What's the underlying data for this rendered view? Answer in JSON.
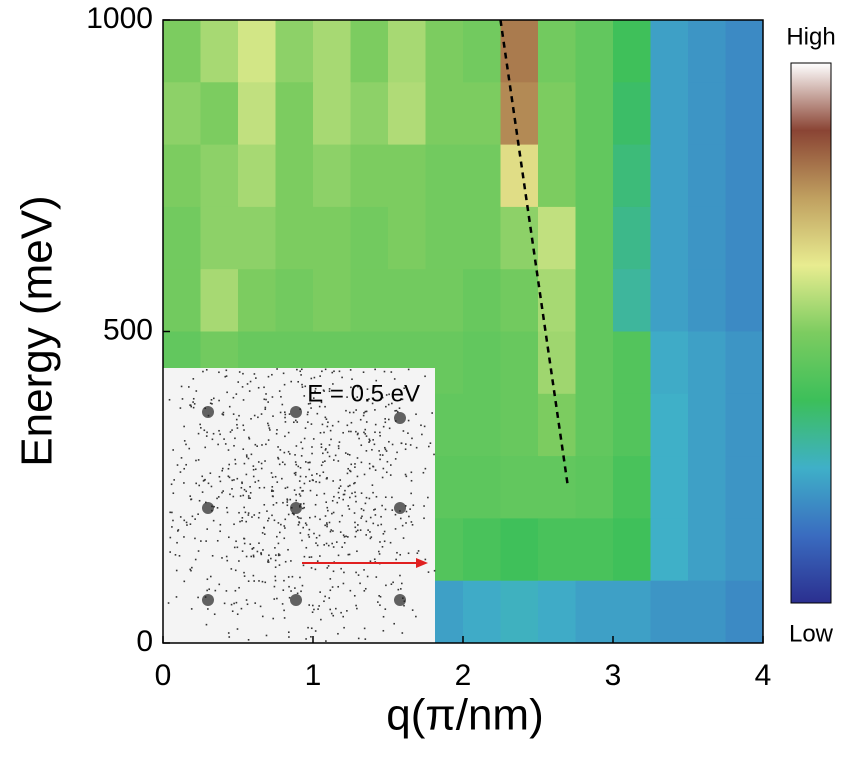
{
  "chart_data": {
    "type": "heatmap",
    "xlabel": "q(π/nm)",
    "ylabel": "Energy (meV)",
    "x": [
      0.125,
      0.375,
      0.625,
      0.875,
      1.125,
      1.375,
      1.625,
      1.875,
      2.125,
      2.375,
      2.625,
      2.875,
      3.125,
      3.375,
      3.625,
      3.875
    ],
    "y": [
      950,
      850,
      750,
      650,
      550,
      450,
      350,
      250,
      150,
      50
    ],
    "z": [
      [
        0.5,
        0.55,
        0.6,
        0.52,
        0.55,
        0.5,
        0.55,
        0.5,
        0.48,
        0.8,
        0.48,
        0.45,
        0.38,
        0.22,
        0.2,
        0.18
      ],
      [
        0.52,
        0.5,
        0.58,
        0.5,
        0.55,
        0.52,
        0.56,
        0.5,
        0.5,
        0.78,
        0.5,
        0.45,
        0.36,
        0.22,
        0.2,
        0.18
      ],
      [
        0.5,
        0.52,
        0.55,
        0.5,
        0.52,
        0.5,
        0.5,
        0.48,
        0.48,
        0.65,
        0.5,
        0.45,
        0.34,
        0.22,
        0.2,
        0.18
      ],
      [
        0.48,
        0.52,
        0.52,
        0.5,
        0.5,
        0.48,
        0.5,
        0.48,
        0.48,
        0.52,
        0.58,
        0.45,
        0.32,
        0.22,
        0.2,
        0.18
      ],
      [
        0.48,
        0.55,
        0.5,
        0.48,
        0.5,
        0.48,
        0.48,
        0.48,
        0.46,
        0.48,
        0.55,
        0.45,
        0.3,
        0.22,
        0.2,
        0.18
      ],
      [
        0.45,
        0.48,
        0.46,
        0.46,
        0.46,
        0.46,
        0.46,
        0.46,
        0.45,
        0.46,
        0.54,
        0.45,
        0.42,
        0.24,
        0.22,
        0.2
      ],
      [
        0.45,
        0.46,
        0.46,
        0.46,
        0.46,
        0.45,
        0.45,
        0.45,
        0.45,
        0.46,
        0.5,
        0.45,
        0.42,
        0.25,
        0.22,
        0.2
      ],
      [
        0.42,
        0.44,
        0.44,
        0.44,
        0.44,
        0.44,
        0.44,
        0.44,
        0.44,
        0.45,
        0.45,
        0.44,
        0.4,
        0.25,
        0.22,
        0.2
      ],
      [
        0.4,
        0.4,
        0.4,
        0.4,
        0.4,
        0.4,
        0.4,
        0.42,
        0.4,
        0.38,
        0.4,
        0.4,
        0.38,
        0.25,
        0.22,
        0.2
      ],
      [
        0.22,
        0.22,
        0.22,
        0.22,
        0.22,
        0.22,
        0.22,
        0.22,
        0.24,
        0.26,
        0.24,
        0.22,
        0.22,
        0.2,
        0.2,
        0.18
      ]
    ],
    "colormap": [
      "#2b2f8f",
      "#3a6cc0",
      "#3fb0c8",
      "#3cbf5a",
      "#7ccc60",
      "#e8ec90",
      "#c0a060",
      "#8a4434",
      "#ffffff"
    ],
    "colorbar_high": "High",
    "colorbar_low": "Low",
    "dispersion": {
      "x": [
        2.25,
        2.7
      ],
      "y": [
        1000,
        250
      ],
      "color": "#000000"
    },
    "inset_label": "E = 0.5 eV",
    "xlim": [
      0,
      4
    ],
    "ylim": [
      0,
      1000
    ],
    "xticks": [
      0,
      1,
      2,
      3,
      4
    ],
    "yticks": [
      0,
      500,
      1000
    ]
  }
}
